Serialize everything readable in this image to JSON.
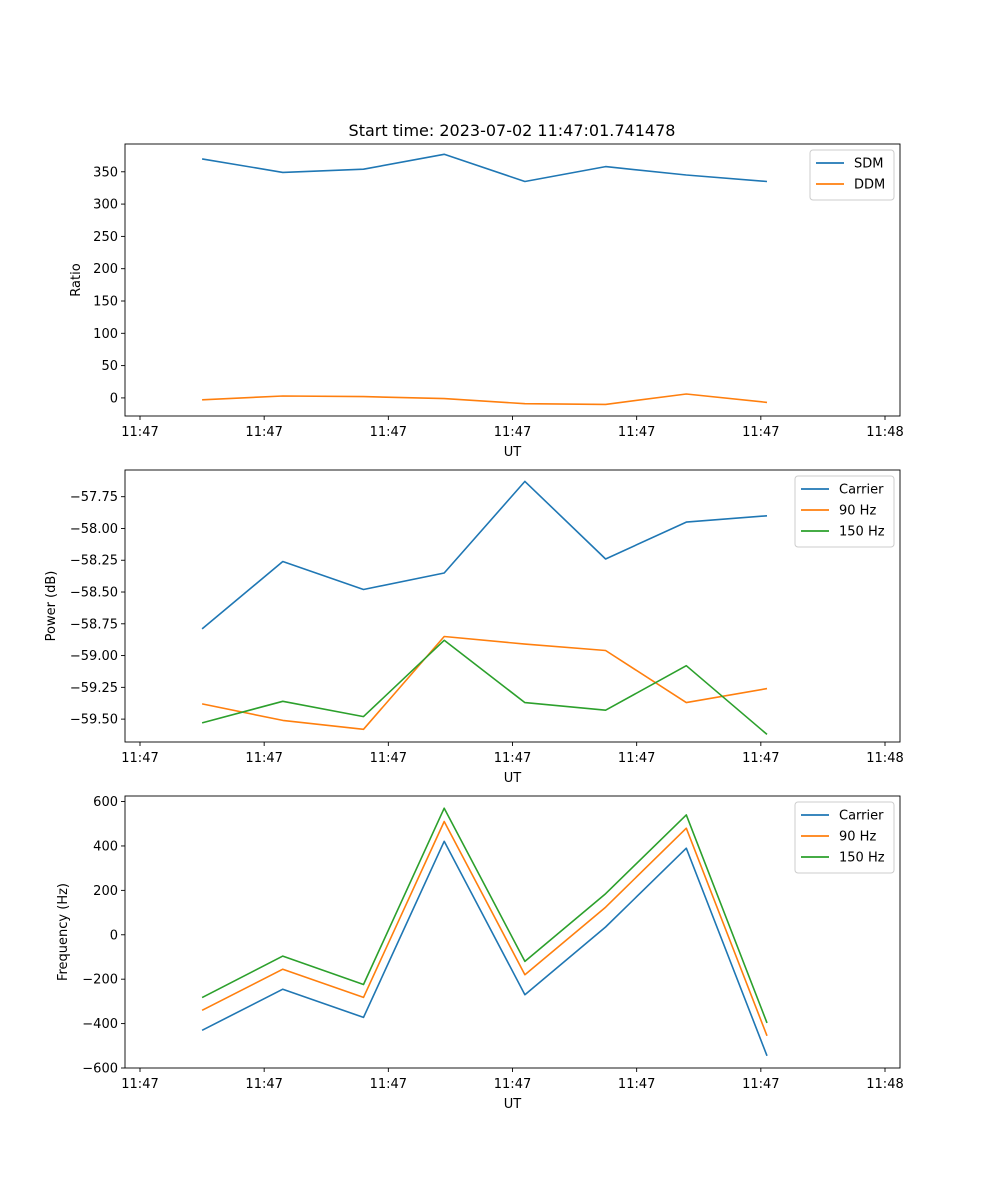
{
  "figure": {
    "title": "Start time: 2023-07-02 11:47:01.741478"
  },
  "colors": {
    "blue": "#1f77b4",
    "orange": "#ff7f0e",
    "green": "#2ca02c"
  },
  "chart_data": [
    {
      "type": "line",
      "title": "Start time: 2023-07-02 11:47:01.741478",
      "xlabel": "UT",
      "ylabel": "Ratio",
      "x_ticks": [
        "11:47",
        "11:47",
        "11:47",
        "11:47",
        "11:47",
        "11:47",
        "11:48"
      ],
      "xlim": [
        0,
        6
      ],
      "x": [
        0.5,
        1.15,
        1.8,
        2.45,
        3.1,
        3.75,
        4.4,
        5.05
      ],
      "ylim": [
        -28,
        393
      ],
      "y_ticks": [
        0,
        50,
        100,
        150,
        200,
        250,
        300,
        350
      ],
      "legend_position": "top-right",
      "grid": false,
      "series": [
        {
          "name": "SDM",
          "color": "#1f77b4",
          "values": [
            370,
            349,
            354,
            377,
            335,
            358,
            345,
            335
          ]
        },
        {
          "name": "DDM",
          "color": "#ff7f0e",
          "values": [
            -3,
            3,
            2,
            -1,
            -9,
            -10,
            6,
            -7
          ]
        }
      ]
    },
    {
      "type": "line",
      "title": "",
      "xlabel": "UT",
      "ylabel": "Power (dB)",
      "x_ticks": [
        "11:47",
        "11:47",
        "11:47",
        "11:47",
        "11:47",
        "11:47",
        "11:48"
      ],
      "xlim": [
        0,
        6
      ],
      "x": [
        0.5,
        1.15,
        1.8,
        2.45,
        3.1,
        3.75,
        4.4,
        5.05
      ],
      "ylim": [
        -59.68,
        -57.54
      ],
      "y_ticks": [
        -59.5,
        -59.25,
        -59.0,
        -58.75,
        -58.5,
        -58.25,
        -58.0,
        -57.75
      ],
      "y_tick_labels": [
        "−59.50",
        "−59.25",
        "−59.00",
        "−58.75",
        "−58.50",
        "−58.25",
        "−58.00",
        "−57.75"
      ],
      "legend_position": "top-right",
      "grid": false,
      "series": [
        {
          "name": "Carrier",
          "color": "#1f77b4",
          "values": [
            -58.79,
            -58.26,
            -58.48,
            -58.35,
            -57.63,
            -58.24,
            -57.95,
            -57.9
          ]
        },
        {
          "name": "90 Hz",
          "color": "#ff7f0e",
          "values": [
            -59.38,
            -59.51,
            -59.58,
            -58.85,
            -58.91,
            -58.96,
            -59.37,
            -59.26
          ]
        },
        {
          "name": "150 Hz",
          "color": "#2ca02c",
          "values": [
            -59.53,
            -59.36,
            -59.48,
            -58.88,
            -59.37,
            -59.43,
            -59.08,
            -59.62
          ]
        }
      ]
    },
    {
      "type": "line",
      "title": "",
      "xlabel": "UT",
      "ylabel": "Frequency (Hz)",
      "x_ticks": [
        "11:47",
        "11:47",
        "11:47",
        "11:47",
        "11:47",
        "11:47",
        "11:48"
      ],
      "xlim": [
        0,
        6
      ],
      "x": [
        0.5,
        1.15,
        1.8,
        2.45,
        3.1,
        3.75,
        4.4,
        5.05
      ],
      "ylim": [
        -600,
        625
      ],
      "y_ticks": [
        -600,
        -400,
        -200,
        0,
        200,
        400,
        600
      ],
      "y_tick_labels": [
        "−600",
        "−400",
        "−200",
        "0",
        "200",
        "400",
        "600"
      ],
      "legend_position": "top-right",
      "grid": false,
      "series": [
        {
          "name": "Carrier",
          "color": "#1f77b4",
          "values": [
            -430,
            -245,
            -372,
            421,
            -270,
            35,
            390,
            -545
          ]
        },
        {
          "name": "90 Hz",
          "color": "#ff7f0e",
          "values": [
            -340,
            -155,
            -282,
            510,
            -180,
            124,
            480,
            -455
          ]
        },
        {
          "name": "150 Hz",
          "color": "#2ca02c",
          "values": [
            -283,
            -96,
            -224,
            570,
            -120,
            185,
            540,
            -397
          ]
        }
      ]
    }
  ]
}
